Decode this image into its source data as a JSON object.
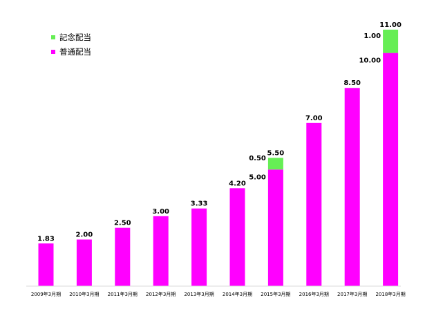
{
  "chart_data": {
    "type": "bar",
    "stacked": true,
    "categories": [
      "2009年3月期",
      "2010年3月期",
      "2011年3月期",
      "2012年3月期",
      "2013年3月期",
      "2014年3月期",
      "2015年3月期",
      "2016年3月期",
      "2017年3月期",
      "2018年3月期"
    ],
    "series": [
      {
        "name": "普通配当",
        "color": "#ff00ff",
        "values": [
          1.83,
          2.0,
          2.5,
          3.0,
          3.33,
          4.2,
          5.0,
          7.0,
          8.5,
          10.0
        ]
      },
      {
        "name": "記念配当",
        "color": "#66ee55",
        "values": [
          0,
          0,
          0,
          0,
          0,
          0,
          0.5,
          0,
          0,
          1.0
        ]
      }
    ],
    "total_labels": [
      "1.83",
      "2.00",
      "2.50",
      "3.00",
      "3.33",
      "4.20",
      "5.50",
      "7.00",
      "8.50",
      "11.00"
    ],
    "component_labels": [
      {
        "category_index": 6,
        "commemorative": "0.50",
        "regular": "5.00"
      },
      {
        "category_index": 9,
        "commemorative": "1.00",
        "regular": "10.00"
      }
    ],
    "ylim": [
      0,
      11.4
    ],
    "grid": false,
    "legend_position": "top-left",
    "legend_order": [
      "記念配当",
      "普通配当"
    ]
  }
}
